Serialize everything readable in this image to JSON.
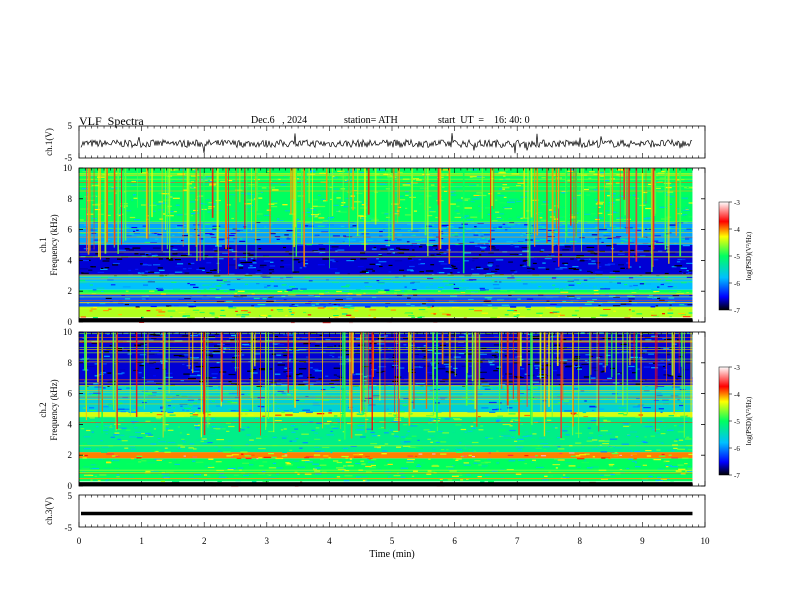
{
  "header": {
    "title": "VLF  Spectra",
    "date": "Dec.6   , 2024",
    "station": "station= ATH",
    "start_ut": "start  UT  =    16: 40: 0"
  },
  "chart_data": [
    {
      "type": "line",
      "name": "ch1-waveform",
      "ylabel": "ch.1(V)",
      "ylim": [
        -5,
        5
      ],
      "y_ticks": [
        "5",
        "-5"
      ],
      "xlim": [
        0,
        10
      ],
      "baseline_v": -0.5,
      "noise_amplitude_v": 1.2
    },
    {
      "type": "heatmap",
      "name": "ch1-spectrogram",
      "ylabel": "ch.1\nFrequency  (kHz)",
      "ylabel_line1": "ch.1",
      "ylabel_line2": "Frequency  (kHz)",
      "ylim": [
        0,
        10
      ],
      "y_ticks": [
        "0",
        "2",
        "4",
        "6",
        "8",
        "10"
      ],
      "xlim": [
        0,
        10
      ],
      "data_end_min": 9.8,
      "colorbar": {
        "label": "log(PSD)(V²/Hz)",
        "range": [
          -7,
          -3
        ],
        "ticks": [
          "-3",
          "-4",
          "-5",
          "-6",
          "-7"
        ]
      },
      "bands_khz": [
        {
          "from": 0,
          "to": 0.3,
          "level": -2.8
        },
        {
          "from": 0.3,
          "to": 1.0,
          "level": -4.5
        },
        {
          "from": 1.0,
          "to": 1.8,
          "level": -6.2
        },
        {
          "from": 1.8,
          "to": 2.1,
          "level": -5.0
        },
        {
          "from": 2.1,
          "to": 3.0,
          "level": -5.8
        },
        {
          "from": 3.0,
          "to": 5.0,
          "level": -6.6
        },
        {
          "from": 5.0,
          "to": 6.5,
          "level": -5.9
        },
        {
          "from": 6.5,
          "to": 10,
          "level": -5.0
        }
      ]
    },
    {
      "type": "heatmap",
      "name": "ch2-spectrogram",
      "ylabel": "ch.2\nFrequency  (kHz)",
      "ylabel_line1": "ch.2",
      "ylabel_line2": "Frequency  (kHz)",
      "ylim": [
        0,
        10
      ],
      "y_ticks": [
        "0",
        "2",
        "4",
        "6",
        "8",
        "10"
      ],
      "xlim": [
        0,
        10
      ],
      "data_end_min": 9.8,
      "colorbar": {
        "label": "log(PSD)(V²/Hz)",
        "range": [
          -7,
          -3
        ],
        "ticks": [
          "-3",
          "-4",
          "-5",
          "-6",
          "-7"
        ]
      },
      "bands_khz": [
        {
          "from": 0,
          "to": 0.3,
          "level": -2.8
        },
        {
          "from": 0.3,
          "to": 1.8,
          "level": -5.0
        },
        {
          "from": 1.8,
          "to": 2.2,
          "level": -4.0
        },
        {
          "from": 2.2,
          "to": 4.5,
          "level": -5.2
        },
        {
          "from": 4.5,
          "to": 4.8,
          "level": -4.4
        },
        {
          "from": 4.8,
          "to": 6.5,
          "level": -5.6
        },
        {
          "from": 6.5,
          "to": 10,
          "level": -6.6
        }
      ]
    },
    {
      "type": "line",
      "name": "ch3-waveform",
      "ylabel": "ch.3(V)",
      "ylim": [
        -5,
        5
      ],
      "y_ticks": [
        "5",
        "-5"
      ],
      "xlim": [
        0,
        10
      ],
      "baseline_v": -0.8,
      "xlabel": "Time  (min)",
      "x_ticks": [
        "0",
        "1",
        "2",
        "3",
        "4",
        "5",
        "6",
        "7",
        "8",
        "9",
        "10"
      ]
    }
  ]
}
